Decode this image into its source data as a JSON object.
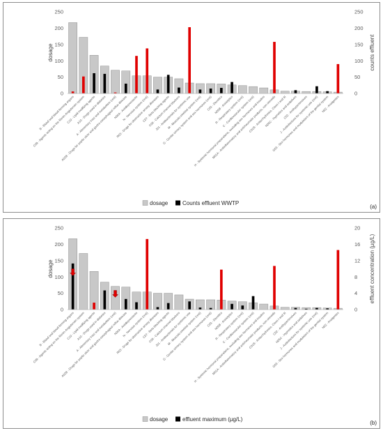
{
  "chart_data": [
    {
      "type": "bar",
      "panel_label": "(a)",
      "ylabel": "dosage",
      "y2label": "counts effluent",
      "ylim": [
        0,
        250
      ],
      "y2lim": [
        0,
        250
      ],
      "yticks": [
        "0",
        "50",
        "100",
        "150",
        "200",
        "250"
      ],
      "y2ticks": [
        "0",
        "50",
        "100",
        "150",
        "200",
        "250"
      ],
      "categories": [
        "B - Blood and blood forming organs",
        "C09 - Agents acting on the Renin-Angiotensin system",
        "C10 - Lipid modifying agents",
        "A10 - Drugs used in diabetes",
        "A - Alimentary tract and metabolism (rest)",
        "A02B - Drugs for peptic ulcer and gastro-oesophageal reflux disease",
        "N06A - Antidepressants",
        "N - Nervous system (rest)",
        "R03 - Drugs for obstructive airway diseases",
        "C07 - Beta blocking agents",
        "C08 - Calcium channel blockers",
        "J01 - Antibacterials for systemic use",
        "M - Musculo-skeletal system (rest)",
        "G - Genito urinary system and sex hormones (rest)",
        "C03 - Diuretics",
        "N05B - Anxiolytics",
        "R - Respiratory system (rest)",
        "C - Cardiovascular system (rest)",
        "H - Systemic hormonal preparations, excluding sex hormones and insulins",
        "M01A - Antiinflammatory and antirheumatic products, non-steroids",
        "C01B - Antiarrhythmics, Class I and III",
        "N05C - Hypnotics and sedatives",
        "C02 - Antihypertensives",
        "J - Antiinfectives for systemic use (rest)",
        "G03 - Sex hormones and modulators of the genital system",
        "N02 - Analgesics"
      ],
      "series": [
        {
          "name": "dosage",
          "axis": "left",
          "color": "#c8c8c8",
          "values": [
            217,
            172,
            117,
            84,
            71,
            69,
            54,
            54,
            50,
            50,
            45,
            32,
            30,
            30,
            29,
            26,
            24,
            21,
            17,
            11,
            7,
            7,
            6,
            6,
            5,
            4
          ]
        },
        {
          "name": "Counts effluent WWTP",
          "axis": "right",
          "color": "#000000",
          "values": [
            0,
            0,
            62,
            60,
            0,
            30,
            0,
            0,
            12,
            57,
            18,
            0,
            12,
            15,
            17,
            35,
            0,
            0,
            0,
            0,
            0,
            10,
            0,
            22,
            7,
            0
          ]
        },
        {
          "name": "",
          "axis": "right",
          "color": "#e00000",
          "values": [
            6,
            52,
            0,
            0,
            3,
            0,
            115,
            138,
            0,
            0,
            0,
            203,
            0,
            0,
            0,
            0,
            0,
            0,
            0,
            158,
            0,
            0,
            0,
            0,
            0,
            90
          ]
        }
      ],
      "legend": [
        "dosage",
        "Counts effluent WWTP"
      ],
      "legend_position": "bottom"
    },
    {
      "type": "bar",
      "panel_label": "(b)",
      "ylabel": "dosage",
      "y2label": "effluent concentration (µg/L)",
      "ylim": [
        0,
        250
      ],
      "y2lim": [
        0,
        20
      ],
      "yticks": [
        "0",
        "50",
        "100",
        "150",
        "200",
        "250"
      ],
      "y2ticks": [
        "0",
        "4",
        "8",
        "12",
        "16",
        "20"
      ],
      "categories": [
        "B - Blood and blood forming organs",
        "C09 - Agents acting on the Renin-Angiotensin system",
        "C10 - Lipid modifying agents",
        "A10 - Drugs used in diabetes",
        "A - Alimentary tract and metabolism (rest)",
        "A02B - Drugs for peptic ulcer and gastro-oesophageal reflux disease",
        "N06A - Antidepressants",
        "N - Nervous system (rest)",
        "R03 - Drugs for obstructive airway diseases",
        "C07 - Beta blocking agents",
        "C08 - Calcium channel blockers",
        "J01 - Antibacterials for systemic use",
        "M - Musculo-skeletal system (rest)",
        "G - Genito urinary system and sex hormones (rest)",
        "C03 - Diuretics",
        "N05B - Anxiolytics",
        "R - Respiratory system (rest)",
        "C - Cardiovascular system (rest)",
        "H - Systemic hormonal preparations, excluding sex hormones and insulins",
        "M01A - Antiinflammatory and antirheumatic products, non-steroids",
        "C01B - Antiarrhythmics, Class I and III",
        "C02 - Antihypertensives",
        "N05C - Hypnotics and sedatives",
        "J - Antiinfectives for systemic use (rest)",
        "G03 - Sex hormones and modulators of the genital system",
        "N02 - Analgesics"
      ],
      "series": [
        {
          "name": "dosage",
          "axis": "left",
          "color": "#c8c8c8",
          "values": [
            217,
            172,
            117,
            84,
            71,
            69,
            54,
            54,
            50,
            50,
            45,
            32,
            30,
            30,
            29,
            26,
            24,
            21,
            17,
            11,
            7,
            7,
            6,
            6,
            5,
            4
          ]
        },
        {
          "name": "effluent maximum (µg/L)",
          "axis": "right",
          "color": "#000000",
          "values": [
            11.3,
            0,
            0,
            4.7,
            0,
            2.6,
            1.8,
            0,
            0.6,
            1.6,
            0,
            2.0,
            0.5,
            0.4,
            0,
            1.4,
            1.0,
            3.3,
            0,
            0,
            0,
            0.4,
            0.2,
            0.4,
            0.3,
            0
          ]
        },
        {
          "name": "",
          "axis": "right",
          "color": "#e00000",
          "values": [
            0,
            0,
            1.7,
            0,
            0,
            0,
            0,
            17.3,
            0,
            0,
            0,
            0,
            0,
            0,
            9.8,
            0,
            0,
            0,
            0,
            10.7,
            0,
            0,
            0,
            0,
            0,
            14.6
          ]
        }
      ],
      "arrows": [
        {
          "category_index": 0,
          "y2_value": 8.3,
          "color": "#e00000",
          "direction": "down"
        },
        {
          "category_index": 4,
          "y2_value": 3.0,
          "color": "#e00000",
          "direction": "down"
        }
      ],
      "legend": [
        "dosage",
        "effluent maximum (µg/L)"
      ],
      "legend_position": "bottom"
    }
  ]
}
